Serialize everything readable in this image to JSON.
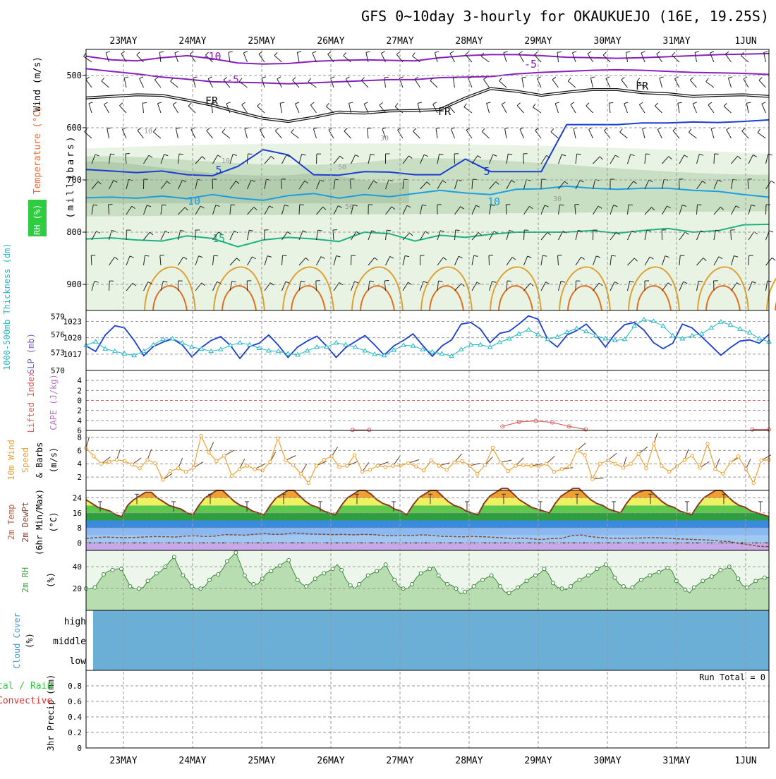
{
  "title": "GFS 0~10day 3-hourly for OKAUKUEJO (16E, 19.25S)",
  "dates": [
    "23MAY",
    "24MAY",
    "25MAY",
    "26MAY",
    "27MAY",
    "28MAY",
    "29MAY",
    "30MAY",
    "31MAY",
    "1JUN"
  ],
  "colors": {
    "grid": "#9a9a9a",
    "slp": "#1a3fd0",
    "thickness": "#22b8c8",
    "lifted": "#e06060",
    "wind": "#f0a030",
    "barb": "#6b3a1a",
    "rh": "#5cb85c",
    "rh_fill": "#b8ddb0",
    "cloud": "#6baed6",
    "temp_line": "#8b3a1a",
    "dew": "#8b4a3a"
  },
  "chart_data": [
    {
      "id": "upper",
      "type": "heatmap",
      "ylabel": "(millibars)",
      "side_labels": [
        "Wind (m/s)",
        "Temperature (°C)",
        "RH (%)"
      ],
      "y_ticks": [
        500,
        600,
        700,
        800,
        900
      ],
      "ylim": [
        450,
        950
      ],
      "reverse_y": true,
      "contour_labels": [
        "-10",
        "-5",
        "FR",
        "FR",
        "FR",
        "5",
        "5",
        "10",
        "10",
        "15",
        "10",
        "10",
        "30",
        "30",
        "50",
        "50"
      ],
      "isotherms": [
        {
          "name": "-10",
          "color": "#8a1fbf",
          "p": [
            463,
            470,
            472,
            466,
            462,
            468,
            476,
            478,
            477,
            473,
            471,
            470,
            471,
            472,
            466,
            462,
            460,
            460,
            462,
            465,
            466,
            467,
            466,
            464,
            462,
            460,
            459,
            458
          ]
        },
        {
          "name": "-5",
          "color": "#8a1fbf",
          "p": [
            487,
            492,
            497,
            503,
            507,
            512,
            513,
            514,
            516,
            514,
            512,
            510,
            508,
            508,
            504,
            503,
            502,
            497,
            494,
            492,
            490,
            489,
            490,
            492,
            494,
            495,
            496,
            498
          ]
        },
        {
          "name": "FR",
          "color": "#111111",
          "p": [
            543,
            540,
            537,
            538,
            547,
            557,
            570,
            582,
            588,
            580,
            570,
            572,
            568,
            567,
            565,
            543,
            525,
            530,
            538,
            532,
            527,
            527,
            533,
            535,
            540,
            538,
            537,
            540
          ]
        },
        {
          "name": "5",
          "color": "#1a3fd0",
          "p": [
            680,
            683,
            686,
            683,
            690,
            692,
            674,
            642,
            652,
            690,
            691,
            684,
            685,
            690,
            690,
            660,
            684,
            684,
            684,
            594,
            594,
            594,
            591,
            591,
            589,
            590,
            588,
            585
          ]
        },
        {
          "name": "10",
          "color": "#1a9fe0",
          "p": [
            734,
            733,
            735,
            731,
            736,
            728,
            735,
            739,
            730,
            726,
            735,
            728,
            732,
            726,
            720,
            725,
            728,
            718,
            717,
            712,
            716,
            718,
            716,
            716,
            720,
            722,
            728,
            733
          ]
        },
        {
          "name": "15",
          "color": "#1ab380",
          "p": [
            813,
            811,
            815,
            817,
            807,
            812,
            828,
            815,
            810,
            813,
            818,
            800,
            803,
            817,
            806,
            810,
            804,
            800,
            800,
            800,
            797,
            802,
            797,
            793,
            800,
            797,
            786,
            785
          ]
        }
      ]
    },
    {
      "id": "slp",
      "type": "line",
      "ylabel": "SLP (mb)",
      "ylabel2": "1000-500mb Thickness (dm)",
      "ylim": [
        1014,
        1025
      ],
      "y_ticks": [
        1017,
        1020,
        1023
      ],
      "ylim2": [
        570,
        580
      ],
      "y_ticks2": [
        570,
        573,
        576,
        579
      ],
      "series": [
        {
          "values": [
            1018.5,
            1017.5,
            1020.5,
            1022.2,
            1021.8,
            1019.5,
            1016.7,
            1018.4,
            1019.2,
            1019.8,
            1018.7,
            1016.5,
            1018.2,
            1019.5,
            1020.2,
            1018.6,
            1016.2,
            1018.4,
            1019.0,
            1020.5,
            1018.6,
            1016.4,
            1018.3,
            1019.4,
            1020.3,
            1018.5,
            1016.4,
            1018.2,
            1019.3,
            1020.4,
            1018.7,
            1016.8,
            1018.5,
            1019.5,
            1020.7,
            1018.6,
            1016.6,
            1018.5,
            1019.6,
            1022.5,
            1022.8,
            1021.6,
            1019.1,
            1020.8,
            1021.2,
            1022.5,
            1024.0,
            1023.4,
            1019.7,
            1018.3,
            1020.5,
            1021.3,
            1022.5,
            1020.6,
            1018.3,
            1020.7,
            1022.4,
            1022.8,
            1021.4,
            1019.1,
            1018.0,
            1019.0,
            1022.5,
            1021.8,
            1020.2,
            1018.5,
            1016.8,
            1018.2,
            1019.4,
            1019.6,
            1019.0,
            1020.6
          ]
        },
        {
          "values": [
            574.2,
            574.8,
            573.6,
            573.2,
            572.8,
            572.5,
            573.2,
            574.3,
            575.2,
            575.3,
            574.6,
            573.9,
            573.6,
            573.2,
            573.5,
            574.2,
            574.6,
            574.3,
            573.7,
            573.3,
            573.2,
            572.8,
            572.6,
            573.3,
            573.9,
            573.9,
            574.6,
            574.3,
            573.9,
            573.3,
            572.7,
            572.5,
            573.4,
            574.2,
            574.1,
            573.5,
            573.1,
            572.8,
            572.4,
            573.5,
            574.3,
            574.3,
            573.9,
            574.7,
            575.3,
            576.1,
            576.8,
            576.0,
            575.2,
            575.6,
            576.4,
            577.0,
            576.5,
            575.8,
            575.3,
            575.0,
            575.2,
            577.4,
            578.5,
            578.2,
            577.4,
            575.8,
            575.3,
            575.8,
            576.1,
            577.1,
            578.1,
            577.6,
            576.9,
            576.3,
            575.3,
            574.8
          ]
        }
      ]
    },
    {
      "id": "cape",
      "type": "line",
      "ylabel": "Lifted Index",
      "ylabel2": "CAPE (J/kg)",
      "ylim": [
        6,
        -6
      ],
      "y_ticks": [
        -4,
        -2,
        0,
        2,
        4,
        6
      ],
      "tick_labels": [
        "4",
        "2",
        "0",
        "2",
        "4",
        "6"
      ],
      "series": [
        {
          "values": [
            null,
            null,
            null,
            null,
            null,
            null,
            null,
            null,
            null,
            null,
            null,
            null,
            null,
            null,
            null,
            null,
            5.9,
            5.9,
            null,
            null,
            null,
            null,
            null,
            null,
            null,
            5.2,
            4.3,
            4.1,
            4.4,
            5.2,
            5.8,
            null,
            null,
            null,
            null,
            null,
            null,
            null,
            null,
            null,
            5.8,
            5.8
          ]
        }
      ]
    },
    {
      "id": "wind10m",
      "type": "line",
      "ylabel": "10m Wind Speed (m/s) & Barbs",
      "ylim": [
        0,
        9
      ],
      "y_ticks": [
        2,
        4,
        6,
        8
      ],
      "series": [
        {
          "values": [
            6.4,
            5.1,
            4.0,
            4.3,
            4.6,
            4.4,
            3.9,
            3.3,
            4.6,
            4.1,
            1.6,
            2.9,
            3.3,
            2.8,
            3.4,
            8.2,
            5.7,
            4.4,
            5.2,
            2.2,
            3.2,
            3.7,
            3.2,
            3.0,
            4.3,
            7.8,
            4.5,
            3.8,
            2.5,
            1.1,
            3.7,
            4.6,
            5.1,
            3.5,
            3.7,
            5.3,
            2.8,
            3.1,
            3.7,
            3.5,
            3.7,
            3.7,
            4.1,
            3.6,
            3.0,
            4.5,
            3.7,
            3.1,
            4.2,
            4.4,
            3.7,
            2.5,
            3.8,
            6.4,
            4.2,
            2.9,
            3.7,
            3.8,
            3.7,
            3.6,
            4.0,
            2.8,
            3.2,
            3.6,
            6.0,
            5.3,
            1.7,
            4.0,
            4.5,
            4.0,
            3.4,
            4.0,
            5.5,
            3.3,
            7.0,
            3.7,
            2.8,
            3.6,
            4.6,
            5.2,
            3.4,
            7.0,
            3.2,
            2.5,
            4.2,
            5.1,
            3.2,
            1.1,
            4.5,
            4.6
          ]
        }
      ]
    },
    {
      "id": "temp2m",
      "type": "area",
      "ylabel": "2m Temp 2m DewPt (6hr Min/Max) (°C)",
      "ylim": [
        -4,
        28
      ],
      "y_ticks": [
        0,
        8,
        16,
        24
      ],
      "series": [
        {
          "name": "temp",
          "values": [
            23,
            21,
            19,
            18,
            17,
            15,
            14,
            20,
            23,
            25,
            27,
            27,
            24,
            22,
            20,
            19,
            18,
            16,
            15,
            20,
            24,
            26,
            28,
            28,
            25,
            22,
            20,
            19,
            17,
            16,
            15,
            20,
            24,
            26,
            28,
            28,
            25,
            22,
            20,
            19,
            17,
            16,
            15,
            20,
            24,
            26,
            28,
            28,
            26,
            23,
            21,
            20,
            18,
            17,
            15,
            20,
            24,
            26,
            28,
            28,
            25,
            22,
            20,
            19,
            17,
            16,
            15,
            21,
            25,
            27,
            29,
            29,
            26,
            23,
            21,
            19,
            18,
            17,
            16,
            21,
            25,
            27,
            29,
            29,
            26,
            23,
            21,
            20,
            18,
            17,
            16,
            21,
            25,
            27,
            28,
            28,
            25,
            22,
            20,
            19,
            17,
            16,
            15,
            20,
            24,
            26,
            28,
            28,
            25,
            22,
            20,
            19,
            17,
            16,
            15,
            14
          ]
        },
        {
          "name": "dewpoint",
          "values": [
            2.4,
            2.8,
            3.1,
            2.9,
            2.8,
            2.9,
            3.2,
            3.4,
            3.3,
            3.1,
            3.6,
            3.8,
            3.4,
            3.6,
            4.4,
            4.3,
            4.1,
            4.6,
            5.0,
            4.5,
            4.7,
            5.3,
            4.9,
            4.7,
            4.6,
            4.4,
            4.5,
            4.3,
            4.5,
            4.4,
            4.0,
            3.8,
            4.0,
            3.9,
            4.3,
            4.0,
            3.5,
            3.5,
            3.2,
            3.5,
            3.3,
            3.0,
            2.8,
            2.3,
            2.6,
            2.2,
            1.8,
            2.3,
            2.4,
            3.8,
            4.2,
            3.3,
            2.8,
            2.5,
            2.4,
            2.5,
            2.6,
            2.8,
            2.7,
            2.4,
            2.1,
            1.9,
            1.7,
            1.5,
            1.0,
            0.7,
            -0.3,
            -1.0,
            -1.8,
            -2.0
          ]
        }
      ]
    },
    {
      "id": "rh2m",
      "type": "area",
      "ylabel": "2m RH (%)",
      "ylim": [
        0,
        55
      ],
      "y_ticks": [
        20,
        40
      ],
      "series": [
        {
          "values": [
            20,
            20,
            21,
            27,
            33,
            36,
            37,
            38,
            38,
            30,
            22,
            20,
            20,
            21,
            27,
            30,
            34,
            36,
            40,
            45,
            49,
            40,
            32,
            28,
            22,
            20,
            20,
            22,
            28,
            32,
            33,
            38,
            45,
            49,
            53,
            43,
            32,
            26,
            24,
            24,
            29,
            34,
            36,
            39,
            41,
            44,
            46,
            36,
            28,
            24,
            22,
            25,
            29,
            32,
            34,
            36,
            38,
            42,
            37,
            28,
            23,
            20,
            24,
            28,
            32,
            34,
            36,
            38,
            42,
            34,
            28,
            22,
            20,
            20,
            24,
            30,
            34,
            36,
            38,
            40,
            32,
            27,
            24,
            23,
            20,
            15,
            17,
            19,
            22,
            26,
            28,
            30,
            32,
            28,
            22,
            17,
            16,
            18,
            21,
            24,
            27,
            30,
            32,
            34,
            38,
            33,
            25,
            21,
            20,
            19,
            22,
            26,
            28,
            30,
            32,
            34,
            38,
            40,
            42,
            38,
            30,
            24,
            22,
            20,
            21,
            25,
            28,
            30,
            32,
            34,
            35,
            37,
            39,
            36,
            27,
            23,
            19,
            16,
            21,
            24,
            27,
            29,
            31,
            33,
            37,
            38,
            40,
            36,
            29,
            23,
            21,
            24,
            27,
            29,
            30,
            30
          ]
        }
      ]
    },
    {
      "id": "cloud",
      "type": "heatmap",
      "ylabel": "Cloud Cover (%)",
      "categories": [
        "high",
        "middle",
        "low"
      ],
      "values": [
        0,
        0,
        0
      ]
    },
    {
      "id": "precip",
      "type": "bar",
      "ylabel": "3hr Precip (mm)",
      "ylabel2": "Total / Rain Convective",
      "ylim": [
        0,
        1
      ],
      "y_ticks": [
        0,
        0.2,
        0.4,
        0.6,
        0.8
      ],
      "run_total_label": "Run Total = 0",
      "values": []
    }
  ],
  "rh_legend": "RH (%)"
}
